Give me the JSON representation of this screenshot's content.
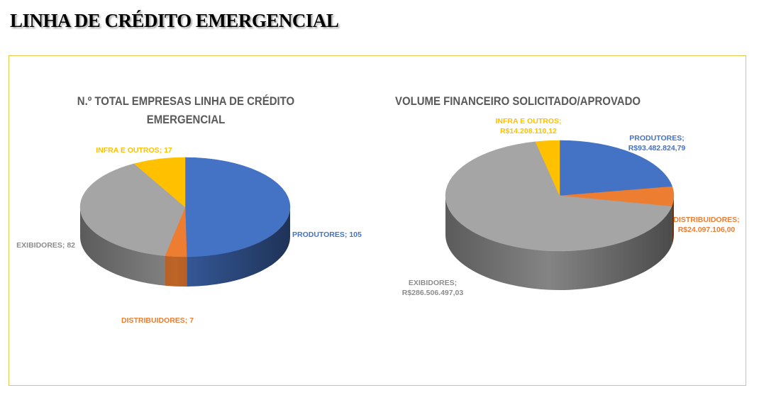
{
  "page": {
    "title": "LINHA DE CRÉDITO EMERGENCIAL"
  },
  "colors": {
    "produtores": "#4472c4",
    "distribuidores": "#ed7d31",
    "exibidores": "#a5a5a5",
    "infra": "#ffc000",
    "frame_border": "#e8c84a"
  },
  "chart_data": [
    {
      "type": "pie",
      "style": "3d",
      "title": "N.º TOTAL EMPRESAS LINHA DE CRÉDITO EMERGENCIAL",
      "title_lines": [
        "N.º TOTAL EMPRESAS LINHA DE CRÉDITO",
        "EMERGENCIAL"
      ],
      "slices": [
        {
          "name": "PRODUTORES",
          "value": 105,
          "label": [
            "PRODUTORES; 105"
          ],
          "color": "#4472c4"
        },
        {
          "name": "DISTRIBUIDORES",
          "value": 7,
          "label": [
            "DISTRIBUIDORES; 7"
          ],
          "color": "#ed7d31"
        },
        {
          "name": "EXIBIDORES",
          "value": 82,
          "label": [
            "EXIBIDORES; 82"
          ],
          "color": "#a5a5a5"
        },
        {
          "name": "INFRA E OUTROS",
          "value": 17,
          "label": [
            "INFRA E OUTROS; 17"
          ],
          "color": "#ffc000"
        }
      ]
    },
    {
      "type": "pie",
      "style": "3d",
      "title": "VOLUME FINANCEIRO SOLICITADO/APROVADO",
      "title_lines": [
        "VOLUME FINANCEIRO SOLICITADO/APROVADO"
      ],
      "slices": [
        {
          "name": "PRODUTORES",
          "value": 93482824.79,
          "label": [
            "PRODUTORES;",
            "R$93.482.824,79"
          ],
          "color": "#4472c4"
        },
        {
          "name": "DISTRIBUIDORES",
          "value": 24097106.0,
          "label": [
            "DISTRIBUIDORES;",
            "R$24.097.106,00"
          ],
          "color": "#ed7d31"
        },
        {
          "name": "EXIBIDORES",
          "value": 286506497.03,
          "label": [
            "EXIBIDORES;",
            "R$286.506.497,03"
          ],
          "color": "#a5a5a5"
        },
        {
          "name": "INFRA E OUTROS",
          "value": 14208110.12,
          "label": [
            "INFRA E OUTROS;",
            "R$14.208.110,12"
          ],
          "color": "#ffc000"
        }
      ]
    }
  ]
}
